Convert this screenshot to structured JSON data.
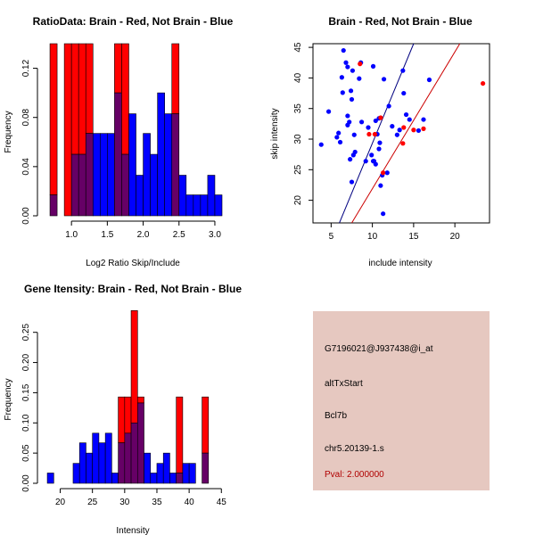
{
  "colors": {
    "red": "#ff0000",
    "blue": "#0000ff",
    "overlap": "#660066",
    "dark_red": "#cc0000",
    "navy": "#000080",
    "info_bg": "#e6c8c0",
    "pval": "#b00000"
  },
  "info": {
    "probe": "G7196021@J937438@i_at",
    "event": "altTxStart",
    "gene": "Bcl7b",
    "locus": "chr5.20139-1.s",
    "pval": "Pval: 2.000000"
  },
  "chart_data": [
    {
      "id": "ratio-hist",
      "type": "bar",
      "title": "RatioData: Brain - Red, Not Brain - Blue",
      "xlabel": "Log2 Ratio Skip/Include",
      "ylabel": "Frequency",
      "xlim": [
        0.6,
        3.1
      ],
      "ylim": [
        0,
        0.14
      ],
      "xticks": [
        "1.0",
        "1.5",
        "2.0",
        "2.5",
        "3.0"
      ],
      "yticks": [
        "0.00",
        "0.04",
        "0.08",
        "0.12"
      ],
      "bin_width": 0.1,
      "bin_starts": [
        0.7,
        0.8,
        0.9,
        1.0,
        1.1,
        1.2,
        1.3,
        1.4,
        1.5,
        1.6,
        1.7,
        1.8,
        1.9,
        2.0,
        2.1,
        2.2,
        2.3,
        2.4,
        2.5,
        2.6,
        2.7,
        2.8,
        2.9,
        3.0
      ],
      "series": [
        {
          "name": "Brain",
          "color": "red",
          "values": [
            0.14,
            0,
            0.14,
            0.14,
            0.14,
            0.14,
            0,
            0,
            0,
            0.14,
            0.14,
            0,
            0,
            0,
            0,
            0,
            0,
            0.14,
            0,
            0,
            0,
            0,
            0,
            0
          ]
        },
        {
          "name": "Not Brain",
          "color": "blue",
          "values": [
            0.017,
            0,
            0,
            0.05,
            0.05,
            0.067,
            0.067,
            0.067,
            0.067,
            0.1,
            0.05,
            0.083,
            0.033,
            0.067,
            0.05,
            0.1,
            0.083,
            0.083,
            0.033,
            0.017,
            0.017,
            0.017,
            0.033,
            0.017
          ]
        }
      ]
    },
    {
      "id": "scatter",
      "type": "scatter",
      "title": "Brain - Red, Not Brain - Blue",
      "xlabel": "include intensity",
      "ylabel": "skip intensity",
      "xlim": [
        2.8,
        24.2
      ],
      "ylim": [
        16.3,
        45.6
      ],
      "xticks": [
        5,
        10,
        15,
        20
      ],
      "yticks": [
        20,
        25,
        30,
        35,
        40,
        45
      ],
      "series": [
        {
          "name": "Not Brain",
          "color": "blue",
          "points": [
            [
              3.8,
              29.1
            ],
            [
              4.7,
              34.5
            ],
            [
              5.7,
              30.3
            ],
            [
              5.9,
              31.0
            ],
            [
              6.1,
              29.5
            ],
            [
              6.3,
              40.1
            ],
            [
              6.4,
              37.6
            ],
            [
              6.5,
              44.5
            ],
            [
              6.8,
              42.5
            ],
            [
              7.0,
              41.8
            ],
            [
              7.0,
              33.8
            ],
            [
              7.0,
              32.3
            ],
            [
              7.2,
              32.8
            ],
            [
              7.3,
              26.7
            ],
            [
              7.4,
              37.9
            ],
            [
              7.5,
              36.5
            ],
            [
              7.5,
              23.0
            ],
            [
              7.6,
              41.2
            ],
            [
              7.7,
              27.4
            ],
            [
              7.8,
              30.7
            ],
            [
              7.9,
              27.9
            ],
            [
              8.4,
              39.9
            ],
            [
              8.6,
              42.5
            ],
            [
              8.7,
              32.8
            ],
            [
              9.2,
              26.4
            ],
            [
              9.5,
              31.9
            ],
            [
              9.9,
              27.4
            ],
            [
              10.1,
              26.4
            ],
            [
              10.1,
              41.9
            ],
            [
              10.2,
              26.4
            ],
            [
              10.4,
              25.9
            ],
            [
              10.4,
              33.0
            ],
            [
              10.6,
              30.8
            ],
            [
              10.8,
              28.4
            ],
            [
              10.8,
              33.4
            ],
            [
              10.9,
              29.4
            ],
            [
              11.0,
              22.4
            ],
            [
              11.2,
              24.1
            ],
            [
              11.3,
              17.8
            ],
            [
              11.4,
              39.8
            ],
            [
              11.8,
              24.5
            ],
            [
              12.0,
              35.4
            ],
            [
              12.4,
              32.1
            ],
            [
              13.0,
              30.7
            ],
            [
              13.3,
              31.5
            ],
            [
              13.7,
              41.2
            ],
            [
              13.8,
              37.5
            ],
            [
              14.1,
              34.0
            ],
            [
              14.5,
              33.2
            ],
            [
              15.6,
              31.4
            ],
            [
              16.2,
              33.2
            ],
            [
              16.9,
              39.7
            ]
          ]
        },
        {
          "name": "Brain",
          "color": "red",
          "points": [
            [
              8.5,
              42.3
            ],
            [
              9.6,
              30.8
            ],
            [
              10.3,
              30.8
            ],
            [
              11.0,
              33.5
            ],
            [
              11.3,
              24.5
            ],
            [
              13.7,
              29.3
            ],
            [
              13.8,
              31.9
            ],
            [
              15.0,
              31.5
            ],
            [
              16.2,
              31.7
            ],
            [
              23.4,
              39.1
            ]
          ]
        }
      ],
      "lines": [
        {
          "name": "blue fit",
          "color": "navy",
          "from": [
            6.0,
            16.3
          ],
          "to": [
            15.0,
            45.6
          ]
        },
        {
          "name": "red fit",
          "color": "dark_red",
          "from": [
            7.5,
            16.3
          ],
          "to": [
            20.6,
            45.6
          ]
        }
      ]
    },
    {
      "id": "intensity-hist",
      "type": "bar",
      "title": "Gene Itensity: Brain - Red, Not Brain - Blue",
      "xlabel": "Intensity",
      "ylabel": "Frequency",
      "xlim": [
        17.3,
        45.1
      ],
      "ylim": [
        0,
        0.285
      ],
      "xticks": [
        20,
        25,
        30,
        35,
        40,
        45
      ],
      "yticks": [
        "0.00",
        "0.05",
        "0.10",
        "0.15",
        "0.20",
        "0.25"
      ],
      "bin_width": 1,
      "bin_starts": [
        18,
        19,
        20,
        21,
        22,
        23,
        24,
        25,
        26,
        27,
        28,
        29,
        30,
        31,
        32,
        33,
        34,
        35,
        36,
        37,
        38,
        39,
        40,
        41,
        42,
        43,
        44
      ],
      "series": [
        {
          "name": "Brain",
          "color": "red",
          "values": [
            0,
            0,
            0,
            0,
            0,
            0,
            0,
            0,
            0,
            0,
            0,
            0.143,
            0.143,
            0.286,
            0.143,
            0,
            0,
            0,
            0,
            0,
            0.143,
            0,
            0,
            0,
            0.143,
            0,
            0
          ]
        },
        {
          "name": "Not Brain",
          "color": "blue",
          "values": [
            0.017,
            0,
            0,
            0,
            0.033,
            0.067,
            0.05,
            0.083,
            0.067,
            0.083,
            0.017,
            0.067,
            0.083,
            0.1,
            0.133,
            0.05,
            0.017,
            0.033,
            0.05,
            0.017,
            0.017,
            0.033,
            0.033,
            0,
            0.05,
            0,
            0
          ]
        }
      ]
    }
  ]
}
